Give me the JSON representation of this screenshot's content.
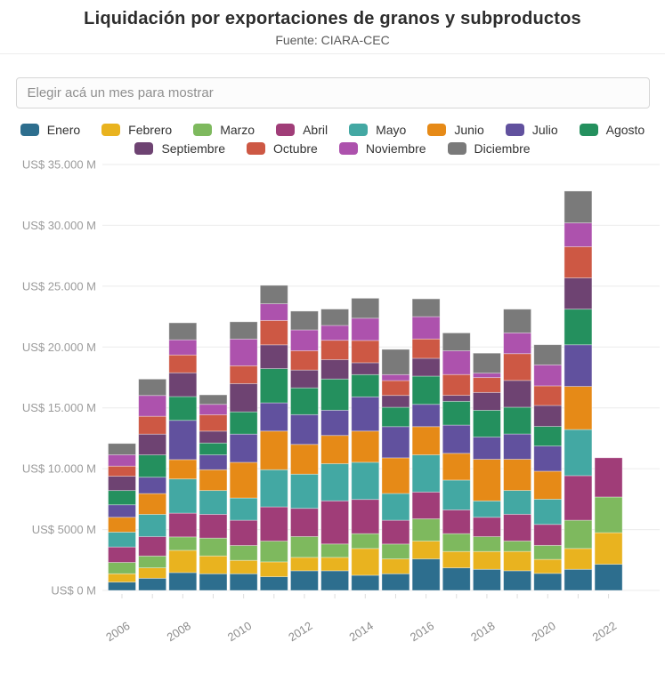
{
  "header": {
    "title": "Liquidación por exportaciones de granos y subproductos",
    "subtitle": "Fuente: CIARA-CEC"
  },
  "filter": {
    "placeholder": "Elegir acá un mes para mostrar"
  },
  "chart_data": {
    "type": "bar",
    "stacked": true,
    "title": "Liquidación por exportaciones de granos y subproductos",
    "subtitle": "Fuente: CIARA-CEC",
    "unit": "US$ M",
    "categories": [
      "2006",
      "2007",
      "2008",
      "2009",
      "2010",
      "2011",
      "2012",
      "2013",
      "2014",
      "2015",
      "2016",
      "2017",
      "2018",
      "2019",
      "2020",
      "2021",
      "2022"
    ],
    "x_tick_labels": [
      "2006",
      "2008",
      "2010",
      "2012",
      "2014",
      "2016",
      "2018",
      "2020",
      "2022"
    ],
    "ylim": [
      0,
      35000
    ],
    "y_ticks": [
      {
        "value": 0,
        "label": "US$ 0 M"
      },
      {
        "value": 5000,
        "label": "US$ 5000 M"
      },
      {
        "value": 10000,
        "label": "US$ 10.000 M"
      },
      {
        "value": 15000,
        "label": "US$ 15.000 M"
      },
      {
        "value": 20000,
        "label": "US$ 20.000 M"
      },
      {
        "value": 25000,
        "label": "US$ 25.000 M"
      },
      {
        "value": 30000,
        "label": "US$ 30.000 M"
      },
      {
        "value": 35000,
        "label": "US$ 35.000 M"
      }
    ],
    "grid": true,
    "legend_position": "top",
    "series": [
      {
        "name": "Enero",
        "color": "#2d6e8e",
        "values": [
          685,
          1000,
          1465,
          1370,
          1370,
          1125,
          1615,
          1615,
          1245,
          1370,
          2590,
          1855,
          1735,
          1615,
          1400,
          1735,
          2150
        ]
      },
      {
        "name": "Febrero",
        "color": "#e9b31f",
        "values": [
          685,
          855,
          1830,
          1465,
          1100,
          1220,
          1100,
          1100,
          2200,
          1220,
          1465,
          1345,
          1465,
          1590,
          1150,
          1710,
          2595
        ]
      },
      {
        "name": "Marzo",
        "color": "#7eb95e",
        "values": [
          930,
          975,
          1100,
          1465,
          1220,
          1710,
          1710,
          1100,
          1220,
          1220,
          1830,
          1465,
          1220,
          855,
          1150,
          2320,
          2930
        ]
      },
      {
        "name": "Abril",
        "color": "#a03d78",
        "values": [
          1270,
          1590,
          1955,
          1955,
          2075,
          2810,
          2320,
          3545,
          2810,
          1955,
          2200,
          1955,
          1590,
          2200,
          1725,
          3665,
          3225
        ]
      },
      {
        "name": "Mayo",
        "color": "#43a8a3",
        "values": [
          1220,
          1830,
          2810,
          1955,
          1830,
          3055,
          2810,
          3055,
          3055,
          2200,
          3055,
          2445,
          1345,
          1955,
          2070,
          3790,
          0
        ]
      },
      {
        "name": "Junio",
        "color": "#e68a17",
        "values": [
          1220,
          1710,
          1590,
          1710,
          2930,
          3175,
          2445,
          2320,
          2565,
          2930,
          2320,
          2200,
          3420,
          2565,
          2300,
          3545,
          0
        ]
      },
      {
        "name": "Julio",
        "color": "#61519e",
        "values": [
          1025,
          1345,
          3225,
          1220,
          2320,
          2320,
          2445,
          2075,
          2810,
          2565,
          1830,
          2320,
          1830,
          2075,
          2070,
          3420,
          0
        ]
      },
      {
        "name": "Agosto",
        "color": "#24905e",
        "values": [
          1175,
          1830,
          1955,
          975,
          1830,
          2810,
          2200,
          2565,
          1830,
          1590,
          2320,
          1955,
          2200,
          2200,
          1610,
          2930,
          0
        ]
      },
      {
        "name": "Septiembre",
        "color": "#6e4372",
        "values": [
          1175,
          1710,
          1955,
          975,
          2320,
          1955,
          1465,
          1590,
          975,
          975,
          1465,
          490,
          1465,
          2200,
          1725,
          2565,
          0
        ]
      },
      {
        "name": "Octubre",
        "color": "#cd5844",
        "values": [
          830,
          1465,
          1465,
          1345,
          1465,
          2005,
          1590,
          1590,
          1830,
          1220,
          1590,
          1710,
          1220,
          2200,
          1610,
          2565,
          0
        ]
      },
      {
        "name": "Noviembre",
        "color": "#ad52ad",
        "values": [
          930,
          1710,
          1245,
          855,
          2200,
          1370,
          1710,
          1220,
          1830,
          490,
          1830,
          1955,
          365,
          1710,
          1725,
          1955,
          0
        ]
      },
      {
        "name": "Diciembre",
        "color": "#7a7a7a",
        "values": [
          930,
          1345,
          1395,
          780,
          1415,
          1515,
          1540,
          1345,
          1640,
          2075,
          1465,
          1465,
          1640,
          1945,
          1655,
          2615,
          0
        ]
      }
    ]
  }
}
